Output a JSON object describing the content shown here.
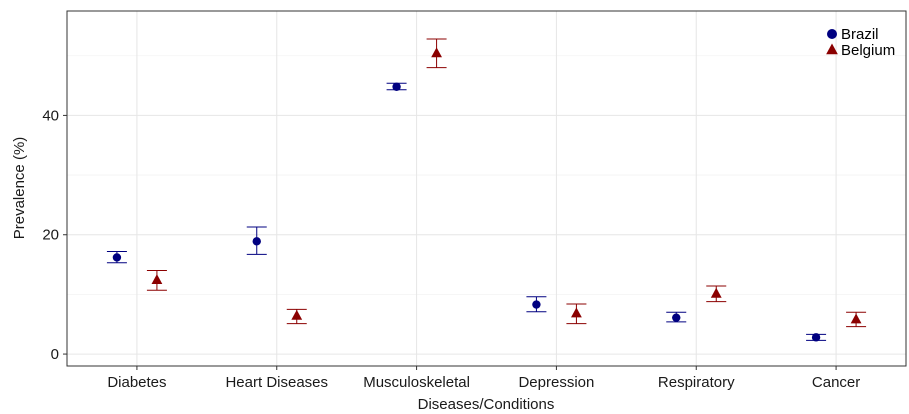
{
  "chart_data": {
    "type": "scatter",
    "xlabel": "Diseases/Conditions",
    "ylabel": "Prevalence (%)",
    "categories": [
      "Diabetes",
      "Heart Diseases",
      "Musculoskeletal",
      "Depression",
      "Respiratory",
      "Cancer"
    ],
    "ylim": [
      -2,
      57.5
    ],
    "yticks": [
      0,
      20,
      40
    ],
    "grid": true,
    "legend_position": "top-right",
    "series": [
      {
        "name": "Brazil",
        "marker": "circle",
        "color": "#000080",
        "values": [
          16.2,
          18.9,
          44.8,
          8.3,
          6.1,
          2.8
        ],
        "lower": [
          15.3,
          16.7,
          44.3,
          7.1,
          5.4,
          2.3
        ],
        "upper": [
          17.2,
          21.3,
          45.4,
          9.6,
          7.0,
          3.3
        ]
      },
      {
        "name": "Belgium",
        "marker": "triangle",
        "color": "#8b0000",
        "values": [
          12.4,
          6.4,
          50.4,
          6.8,
          10.1,
          5.8
        ],
        "lower": [
          10.7,
          5.1,
          48.0,
          5.1,
          8.8,
          4.6
        ],
        "upper": [
          14.0,
          7.5,
          52.8,
          8.4,
          11.4,
          7.0
        ]
      }
    ]
  }
}
